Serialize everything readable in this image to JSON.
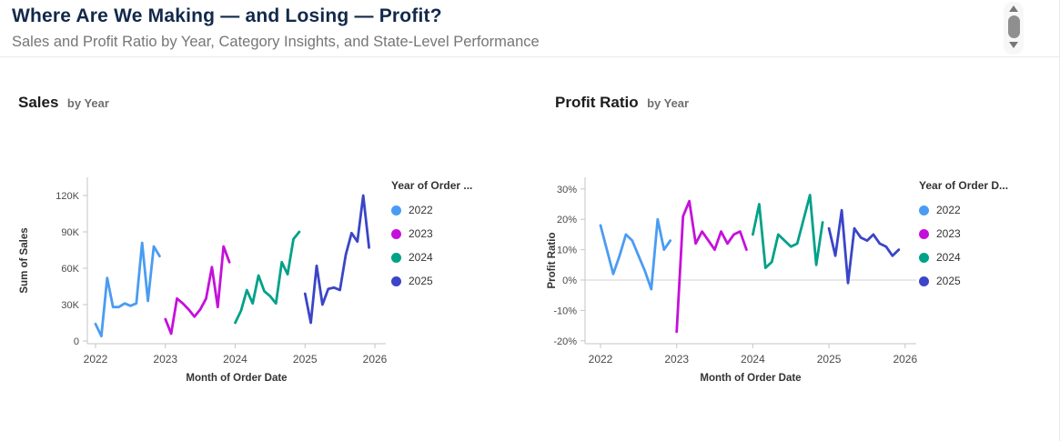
{
  "page": {
    "title": "Where Are We Making — and Losing — Profit?",
    "subtitle": "Sales and Profit Ratio by Year, Category Insights, and State-Level Performance"
  },
  "icons": {
    "scroll_up": "scroll-up-arrow",
    "scroll_thumb": "scrollbar-thumb",
    "scroll_down": "scroll-down-arrow"
  },
  "colors": {
    "title_navy": "#12294a",
    "subtitle_gray": "#767676",
    "axis_line": "#c6c6c6",
    "zero_gridline": "#d9d9d9",
    "year_2022": "#4a9cf3",
    "year_2023": "#c510db",
    "year_2024": "#00a189",
    "year_2025": "#3a45c7"
  },
  "chart_data": [
    {
      "type": "line",
      "title": "Sales",
      "title_suffix": "by Year",
      "xlabel": "Month of Order Date",
      "ylabel": "Sum of Sales",
      "x_unit": "month",
      "xlim": [
        2022,
        2026
      ],
      "ylim": [
        0,
        120000
      ],
      "grid": false,
      "zero_gridline": false,
      "legend_title": "Year of Order ...",
      "legend_position": "right",
      "xticks": [
        "2022",
        "2023",
        "2024",
        "2025",
        "2026"
      ],
      "yticks": [
        {
          "value": 0,
          "label": "0"
        },
        {
          "value": 30000,
          "label": "30K"
        },
        {
          "value": 60000,
          "label": "60K"
        },
        {
          "value": 90000,
          "label": "90K"
        },
        {
          "value": 120000,
          "label": "120K"
        }
      ],
      "series": [
        {
          "name": "2022",
          "start_year": 2022,
          "color": "#4a9cf3",
          "values": [
            14000,
            4000,
            52000,
            28000,
            28000,
            31000,
            29000,
            31000,
            81000,
            33000,
            78000,
            70000
          ]
        },
        {
          "name": "2023",
          "start_year": 2023,
          "color": "#c510db",
          "values": [
            18000,
            6000,
            35000,
            31000,
            26000,
            20000,
            26000,
            35000,
            61000,
            28000,
            78000,
            65000
          ]
        },
        {
          "name": "2024",
          "start_year": 2024,
          "color": "#00a189",
          "values": [
            15000,
            25000,
            42000,
            31000,
            54000,
            41000,
            37000,
            31000,
            65000,
            55000,
            84000,
            90000
          ]
        },
        {
          "name": "2025",
          "start_year": 2025,
          "color": "#3a45c7",
          "values": [
            39000,
            15000,
            62000,
            30000,
            43000,
            44000,
            42000,
            71000,
            89000,
            82000,
            120000,
            77000
          ]
        }
      ]
    },
    {
      "type": "line",
      "title": "Profit Ratio",
      "title_suffix": "by Year",
      "xlabel": "Month of Order Date",
      "ylabel": "Profit Ratio",
      "x_unit": "month",
      "xlim": [
        2022,
        2026
      ],
      "ylim": [
        -20,
        30
      ],
      "grid": false,
      "zero_gridline": true,
      "legend_title": "Year of Order D...",
      "legend_position": "right",
      "xticks": [
        "2022",
        "2023",
        "2024",
        "2025",
        "2026"
      ],
      "yticks": [
        {
          "value": -20,
          "label": "-20%"
        },
        {
          "value": -10,
          "label": "-10%"
        },
        {
          "value": 0,
          "label": "0%"
        },
        {
          "value": 10,
          "label": "10%"
        },
        {
          "value": 20,
          "label": "20%"
        },
        {
          "value": 30,
          "label": "30%"
        }
      ],
      "series": [
        {
          "name": "2022",
          "start_year": 2022,
          "color": "#4a9cf3",
          "values": [
            18,
            10,
            2,
            8,
            15,
            13,
            8,
            3,
            -3,
            20,
            10,
            13
          ]
        },
        {
          "name": "2023",
          "start_year": 2023,
          "color": "#c510db",
          "values": [
            -17,
            21,
            26,
            12,
            16,
            13,
            10,
            16,
            12,
            15,
            16,
            10
          ]
        },
        {
          "name": "2024",
          "start_year": 2024,
          "color": "#00a189",
          "values": [
            15,
            25,
            4,
            6,
            15,
            13,
            11,
            12,
            20,
            28,
            5,
            19
          ]
        },
        {
          "name": "2025",
          "start_year": 2025,
          "color": "#3a45c7",
          "values": [
            17,
            8,
            23,
            -1,
            17,
            14,
            13,
            15,
            12,
            11,
            8,
            10
          ]
        }
      ]
    }
  ]
}
